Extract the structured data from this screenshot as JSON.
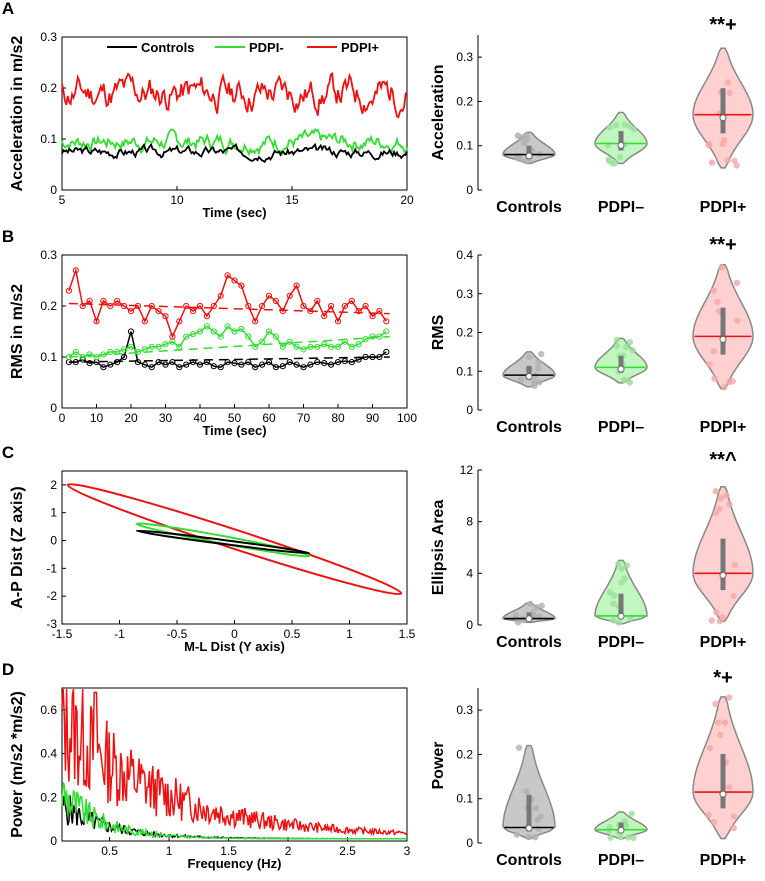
{
  "panels": [
    "A",
    "B",
    "C",
    "D"
  ],
  "groups": [
    "Controls",
    "PDPI–",
    "PDPI+"
  ],
  "colors": {
    "controls": "#000000",
    "pdpi_minus": "#33dd33",
    "pdpi_plus": "#ee1111",
    "violin_controls": "#c8c8c8",
    "violin_minus": "#bff7bf",
    "violin_plus": "#ffd0d0"
  },
  "chart_data": [
    {
      "id": "A_line",
      "type": "line",
      "xlabel": "Time (sec)",
      "ylabel": "Acceleration in m/s2",
      "xlim": [
        5,
        20
      ],
      "ylim": [
        0,
        0.3
      ],
      "xticks": [
        5,
        10,
        15,
        20
      ],
      "yticks": [
        0,
        0.1,
        0.2,
        0.3
      ],
      "legend": [
        "Controls",
        "PDPI-",
        "PDPI+"
      ],
      "series": [
        {
          "name": "Controls",
          "mean": 0.075,
          "amp": 0.015,
          "seed": 3,
          "n": 240
        },
        {
          "name": "PDPI-",
          "mean": 0.095,
          "amp": 0.025,
          "seed": 7,
          "n": 240
        },
        {
          "name": "PDPI+",
          "mean": 0.19,
          "amp": 0.05,
          "seed": 11,
          "n": 240
        }
      ]
    },
    {
      "id": "A_violin",
      "type": "violin",
      "ylabel": "Acceleration",
      "ylim": [
        0,
        0.35
      ],
      "yticks": [
        0,
        0.1,
        0.2,
        0.3
      ],
      "medians": [
        0.08,
        0.105,
        0.17
      ],
      "ranges": [
        [
          0.06,
          0.13
        ],
        [
          0.06,
          0.175
        ],
        [
          0.05,
          0.32
        ]
      ],
      "significance": [
        "",
        "",
        "**+"
      ]
    },
    {
      "id": "B_line",
      "type": "line",
      "xlabel": "Time (sec)",
      "ylabel": "RMS in m/s2",
      "xlim": [
        0,
        100
      ],
      "ylim": [
        0,
        0.3
      ],
      "xticks": [
        0,
        10,
        20,
        30,
        40,
        50,
        60,
        70,
        80,
        90,
        100
      ],
      "yticks": [
        0,
        0.1,
        0.2,
        0.3
      ],
      "series": [
        {
          "name": "Controls",
          "x": [
            2,
            4,
            6,
            8,
            10,
            12,
            14,
            16,
            18,
            20,
            22,
            24,
            26,
            28,
            30,
            32,
            34,
            36,
            38,
            40,
            42,
            44,
            46,
            48,
            50,
            52,
            54,
            56,
            58,
            60,
            62,
            64,
            66,
            68,
            70,
            72,
            74,
            76,
            78,
            80,
            82,
            84,
            86,
            88,
            90,
            92,
            94
          ],
          "values": [
            0.09,
            0.09,
            0.095,
            0.088,
            0.09,
            0.08,
            0.085,
            0.09,
            0.1,
            0.15,
            0.09,
            0.085,
            0.08,
            0.09,
            0.085,
            0.09,
            0.08,
            0.085,
            0.09,
            0.085,
            0.09,
            0.082,
            0.08,
            0.09,
            0.088,
            0.085,
            0.09,
            0.08,
            0.085,
            0.09,
            0.08,
            0.082,
            0.09,
            0.085,
            0.08,
            0.085,
            0.09,
            0.088,
            0.085,
            0.09,
            0.092,
            0.09,
            0.095,
            0.1,
            0.1,
            0.1,
            0.11
          ]
        },
        {
          "name": "PDPI-",
          "x": [
            2,
            4,
            6,
            8,
            10,
            12,
            14,
            16,
            18,
            20,
            22,
            24,
            26,
            28,
            30,
            32,
            34,
            36,
            38,
            40,
            42,
            44,
            46,
            48,
            50,
            52,
            54,
            56,
            58,
            60,
            62,
            64,
            66,
            68,
            70,
            72,
            74,
            76,
            78,
            80,
            82,
            84,
            86,
            88,
            90,
            92,
            94
          ],
          "values": [
            0.1,
            0.11,
            0.1,
            0.105,
            0.1,
            0.105,
            0.11,
            0.11,
            0.115,
            0.12,
            0.11,
            0.115,
            0.12,
            0.12,
            0.125,
            0.13,
            0.12,
            0.14,
            0.145,
            0.15,
            0.16,
            0.15,
            0.14,
            0.16,
            0.15,
            0.155,
            0.14,
            0.12,
            0.13,
            0.15,
            0.14,
            0.12,
            0.13,
            0.12,
            0.115,
            0.12,
            0.12,
            0.125,
            0.12,
            0.12,
            0.13,
            0.12,
            0.125,
            0.135,
            0.14,
            0.14,
            0.15
          ]
        },
        {
          "name": "PDPI+",
          "x": [
            2,
            4,
            6,
            8,
            10,
            12,
            14,
            16,
            18,
            20,
            22,
            24,
            26,
            28,
            30,
            32,
            34,
            36,
            38,
            40,
            42,
            44,
            46,
            48,
            50,
            52,
            54,
            56,
            58,
            60,
            62,
            64,
            66,
            68,
            70,
            72,
            74,
            76,
            78,
            80,
            82,
            84,
            86,
            88,
            90,
            92,
            94
          ],
          "values": [
            0.23,
            0.27,
            0.2,
            0.21,
            0.17,
            0.21,
            0.2,
            0.21,
            0.2,
            0.19,
            0.2,
            0.17,
            0.2,
            0.19,
            0.18,
            0.14,
            0.17,
            0.2,
            0.19,
            0.2,
            0.18,
            0.2,
            0.22,
            0.26,
            0.25,
            0.24,
            0.2,
            0.17,
            0.2,
            0.22,
            0.21,
            0.19,
            0.22,
            0.24,
            0.2,
            0.19,
            0.21,
            0.18,
            0.2,
            0.17,
            0.2,
            0.21,
            0.19,
            0.2,
            0.18,
            0.19,
            0.17
          ]
        }
      ],
      "trend": [
        {
          "name": "Controls",
          "x": [
            2,
            95
          ],
          "values": [
            0.09,
            0.1
          ]
        },
        {
          "name": "PDPI-",
          "x": [
            2,
            95
          ],
          "values": [
            0.1,
            0.14
          ]
        },
        {
          "name": "PDPI+",
          "x": [
            2,
            95
          ],
          "values": [
            0.205,
            0.185
          ]
        }
      ]
    },
    {
      "id": "B_violin",
      "type": "violin",
      "ylabel": "RMS",
      "ylim": [
        0,
        0.4
      ],
      "yticks": [
        0,
        0.1,
        0.2,
        0.3,
        0.4
      ],
      "medians": [
        0.09,
        0.11,
        0.19
      ],
      "ranges": [
        [
          0.06,
          0.15
        ],
        [
          0.07,
          0.185
        ],
        [
          0.055,
          0.375
        ]
      ],
      "significance": [
        "",
        "",
        "**+"
      ]
    },
    {
      "id": "C_ellipse",
      "type": "ellipse",
      "xlabel": "M-L Dist (Y axis)",
      "ylabel": "A-P Dist (Z axis)",
      "xlim": [
        -1.5,
        1.5
      ],
      "ylim": [
        -3,
        2.5
      ],
      "xticks": [
        -1.5,
        -1,
        -0.5,
        0,
        0.5,
        1,
        1.5
      ],
      "yticks": [
        -3,
        -2,
        -1,
        0,
        1,
        2
      ],
      "ellipses": [
        {
          "name": "Controls",
          "cx": -0.1,
          "cy": -0.05,
          "x1": -0.85,
          "y1": 0.35,
          "x2": 0.65,
          "y2": -0.45,
          "width": 0.12
        },
        {
          "name": "PDPI-",
          "cx": -0.1,
          "cy": 0.05,
          "x1": -0.85,
          "y1": 0.6,
          "x2": 0.65,
          "y2": -0.55,
          "width": 0.3
        },
        {
          "name": "PDPI+",
          "cx": 0.0,
          "cy": 0.05,
          "x1": -1.45,
          "y1": 2.0,
          "x2": 1.45,
          "y2": -1.9,
          "width": 0.75
        }
      ]
    },
    {
      "id": "C_violin",
      "type": "violin",
      "ylabel": "Ellipsis Area",
      "ylim": [
        0,
        12
      ],
      "yticks": [
        0,
        4,
        8,
        12
      ],
      "medians": [
        0.5,
        0.7,
        4.0
      ],
      "ranges": [
        [
          0.2,
          1.7
        ],
        [
          0.1,
          5.0
        ],
        [
          0.3,
          10.7
        ]
      ],
      "significance": [
        "",
        "",
        "**^"
      ]
    },
    {
      "id": "D_spectrum",
      "type": "line",
      "xlabel": "Frequency (Hz)",
      "ylabel": "Power (m/s2 *m/s2)",
      "xlim": [
        0.1,
        3
      ],
      "ylim": [
        0,
        0.7
      ],
      "xticks": [
        0.5,
        1,
        1.5,
        2,
        2.5,
        3
      ],
      "yticks": [
        0,
        0.2,
        0.4,
        0.6
      ],
      "series": [
        {
          "name": "Controls",
          "peak": 0.2,
          "decay": 2.5,
          "floor": 0.01,
          "seed": 5
        },
        {
          "name": "PDPI-",
          "peak": 0.28,
          "decay": 3.0,
          "floor": 0.01,
          "seed": 9
        },
        {
          "name": "PDPI+",
          "peak": 0.7,
          "decay": 1.2,
          "floor": 0.02,
          "seed": 13
        }
      ]
    },
    {
      "id": "D_violin",
      "type": "violin",
      "ylabel": "Power",
      "ylim": [
        0,
        0.35
      ],
      "yticks": [
        0,
        0.1,
        0.2,
        0.3
      ],
      "medians": [
        0.035,
        0.03,
        0.115
      ],
      "ranges": [
        [
          0.01,
          0.22
        ],
        [
          0.01,
          0.07
        ],
        [
          0.01,
          0.33
        ]
      ],
      "significance": [
        "",
        "",
        "*+"
      ]
    }
  ]
}
